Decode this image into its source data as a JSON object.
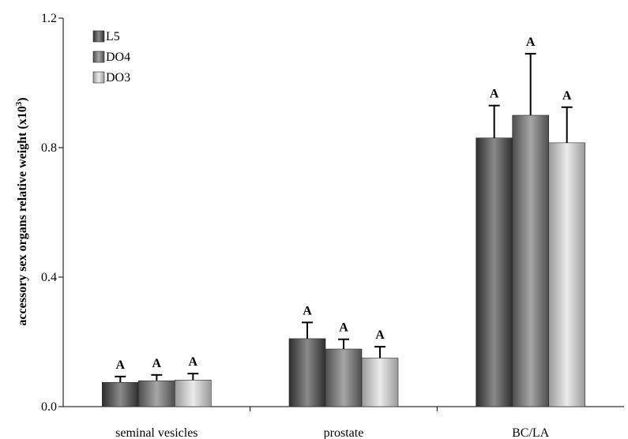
{
  "chart_data": {
    "type": "bar",
    "categories": [
      "seminal vesicles",
      "prostate",
      "BC/LA"
    ],
    "series": [
      {
        "name": "L5",
        "values": [
          0.075,
          0.21,
          0.83
        ],
        "errors": [
          0.018,
          0.05,
          0.1
        ],
        "labels": [
          "A",
          "A",
          "A"
        ],
        "color": "#4a4a4a"
      },
      {
        "name": "DO4",
        "values": [
          0.08,
          0.178,
          0.9
        ],
        "errors": [
          0.018,
          0.03,
          0.19
        ],
        "labels": [
          "A",
          "A",
          "A"
        ],
        "color": "#6e6e6e"
      },
      {
        "name": "DO3",
        "values": [
          0.082,
          0.15,
          0.815
        ],
        "errors": [
          0.02,
          0.035,
          0.11
        ],
        "labels": [
          "A",
          "A",
          "A"
        ],
        "color": "#b8b8b8"
      }
    ],
    "ylabel": "accessory sex organs relative weight (x10",
    "ylabel_sup": "3",
    "ylabel_end": ")",
    "ylim": [
      0,
      1.2
    ],
    "yticks": [
      "0.0",
      "0.4",
      "0.8",
      "1.2"
    ],
    "ytick_values": [
      0,
      0.4,
      0.8,
      1.2
    ],
    "grid": false,
    "legend_position": "top-left"
  }
}
